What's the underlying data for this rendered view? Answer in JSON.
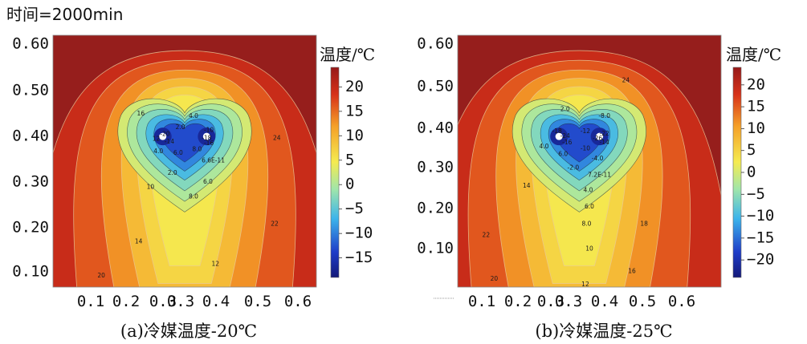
{
  "header": {
    "time_label": "时间=2000min"
  },
  "chart_data": [
    {
      "type": "heatmap",
      "caption": "(a)冷媒温度-20℃",
      "colorbar_title": "温度/℃",
      "colorbar_ticks": [
        "20",
        "15",
        "10",
        "5",
        "0",
        "−5",
        "−10",
        "−15"
      ],
      "colorbar_range": [
        -19,
        24
      ],
      "x_ticks": [
        "0.1",
        "0.2",
        "0.3",
        "0.3",
        "0.4",
        "0.5",
        "0.6"
      ],
      "y_ticks": [
        "0.60",
        "0.50",
        "0.40",
        "0.30",
        "0.20",
        "0.10"
      ],
      "xlim": [
        0.05,
        0.65
      ],
      "ylim": [
        0.065,
        0.625
      ],
      "pipes": [
        {
          "x": 0.3,
          "y": 0.4
        },
        {
          "x": 0.4,
          "y": 0.4
        }
      ],
      "contour_labels": [
        {
          "text": "4.0",
          "x": 0.37,
          "y": 0.445
        },
        {
          "text": "2.0",
          "x": 0.34,
          "y": 0.42
        },
        {
          "text": "-20",
          "x": 0.305,
          "y": 0.405
        },
        {
          "text": "-10",
          "x": 0.405,
          "y": 0.414
        },
        {
          "text": "-18",
          "x": 0.4,
          "y": 0.396
        },
        {
          "text": "12",
          "x": 0.285,
          "y": 0.394
        },
        {
          "text": "-14",
          "x": 0.315,
          "y": 0.388
        },
        {
          "text": "-16",
          "x": 0.405,
          "y": 0.384
        },
        {
          "text": "4.0",
          "x": 0.29,
          "y": 0.366
        },
        {
          "text": "6.0",
          "x": 0.335,
          "y": 0.363
        },
        {
          "text": "8.0",
          "x": 0.378,
          "y": 0.371
        },
        {
          "text": "6.6E-11",
          "x": 0.415,
          "y": 0.346
        },
        {
          "text": "2.0",
          "x": 0.322,
          "y": 0.318
        },
        {
          "text": "6.0",
          "x": 0.403,
          "y": 0.299
        },
        {
          "text": "8.0",
          "x": 0.37,
          "y": 0.266
        },
        {
          "text": "10",
          "x": 0.272,
          "y": 0.287
        },
        {
          "text": "16",
          "x": 0.25,
          "y": 0.45
        },
        {
          "text": "24",
          "x": 0.56,
          "y": 0.396
        },
        {
          "text": "14",
          "x": 0.245,
          "y": 0.166
        },
        {
          "text": "12",
          "x": 0.42,
          "y": 0.116
        },
        {
          "text": "22",
          "x": 0.555,
          "y": 0.205
        },
        {
          "text": "20",
          "x": 0.16,
          "y": 0.09
        }
      ]
    },
    {
      "type": "heatmap",
      "caption": "(b)冷媒温度-25℃",
      "colorbar_title": "温度/℃",
      "colorbar_ticks": [
        "20",
        "15",
        "10",
        "5",
        "0",
        "−5",
        "−10",
        "−15",
        "−20"
      ],
      "colorbar_range": [
        -24,
        24
      ],
      "x_ticks": [
        "0.1",
        "0.2",
        "0.3",
        "0.3",
        "0.4",
        "0.5",
        "0.6"
      ],
      "y_ticks": [
        "0.60",
        "0.50",
        "0.40",
        "0.30",
        "0.20",
        "0.10"
      ],
      "xlim": [
        0.05,
        0.7
      ],
      "ylim": [
        0.065,
        0.625
      ],
      "pipes": [
        {
          "x": 0.3,
          "y": 0.4
        },
        {
          "x": 0.4,
          "y": 0.4
        }
      ],
      "contour_labels": [
        {
          "text": "24",
          "x": 0.465,
          "y": 0.524
        },
        {
          "text": "2.0",
          "x": 0.315,
          "y": 0.46
        },
        {
          "text": "-8.0",
          "x": 0.412,
          "y": 0.445
        },
        {
          "text": "-18",
          "x": 0.295,
          "y": 0.411
        },
        {
          "text": "-12",
          "x": 0.365,
          "y": 0.411
        },
        {
          "text": "-22",
          "x": 0.412,
          "y": 0.406
        },
        {
          "text": "-24",
          "x": 0.315,
          "y": 0.4
        },
        {
          "text": "-26",
          "x": 0.395,
          "y": 0.395
        },
        {
          "text": "-16",
          "x": 0.32,
          "y": 0.386
        },
        {
          "text": "-14",
          "x": 0.412,
          "y": 0.386
        },
        {
          "text": "4.0",
          "x": 0.263,
          "y": 0.377
        },
        {
          "text": "-10",
          "x": 0.365,
          "y": 0.373
        },
        {
          "text": "6.0",
          "x": 0.31,
          "y": 0.36
        },
        {
          "text": "-4.0",
          "x": 0.395,
          "y": 0.35
        },
        {
          "text": "-2.0",
          "x": 0.335,
          "y": 0.33
        },
        {
          "text": "7.2E-11",
          "x": 0.4,
          "y": 0.314
        },
        {
          "text": "14",
          "x": 0.22,
          "y": 0.29
        },
        {
          "text": "4.0",
          "x": 0.372,
          "y": 0.28
        },
        {
          "text": "6.0",
          "x": 0.375,
          "y": 0.243
        },
        {
          "text": "8.0",
          "x": 0.368,
          "y": 0.205
        },
        {
          "text": "18",
          "x": 0.51,
          "y": 0.205
        },
        {
          "text": "10",
          "x": 0.375,
          "y": 0.15
        },
        {
          "text": "22",
          "x": 0.12,
          "y": 0.18
        },
        {
          "text": "16",
          "x": 0.48,
          "y": 0.1
        },
        {
          "text": "20",
          "x": 0.14,
          "y": 0.083
        },
        {
          "text": "12",
          "x": 0.365,
          "y": 0.07
        }
      ]
    }
  ]
}
